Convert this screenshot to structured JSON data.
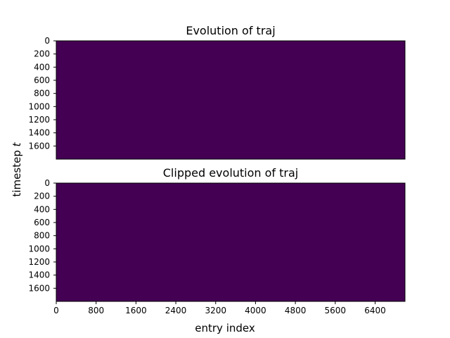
{
  "colors": {
    "heatmap_fill": "#440154",
    "background": "#ffffff",
    "axis": "#000000"
  },
  "chart_data": [
    {
      "type": "heatmap",
      "title": "Evolution of traj",
      "xlabel": "",
      "ylabel": "",
      "xlim": [
        0,
        7000
      ],
      "ylim": [
        1800,
        0
      ],
      "yticks": [
        0,
        200,
        400,
        600,
        800,
        1000,
        1200,
        1400,
        1600
      ],
      "xticks": [],
      "values_uniform": 0,
      "colormap": "viridis",
      "grid": false
    },
    {
      "type": "heatmap",
      "title": "Clipped evolution of traj",
      "xlabel": "entry index",
      "ylabel": "",
      "xlim": [
        0,
        7000
      ],
      "ylim": [
        1800,
        0
      ],
      "yticks": [
        0,
        200,
        400,
        600,
        800,
        1000,
        1200,
        1400,
        1600
      ],
      "xticks": [
        0,
        800,
        1600,
        2400,
        3200,
        4000,
        4800,
        5600,
        6400
      ],
      "values_uniform": 0,
      "colormap": "viridis",
      "grid": false
    }
  ],
  "shared": {
    "ylabel_text": "timestep ",
    "ylabel_var": "t"
  }
}
